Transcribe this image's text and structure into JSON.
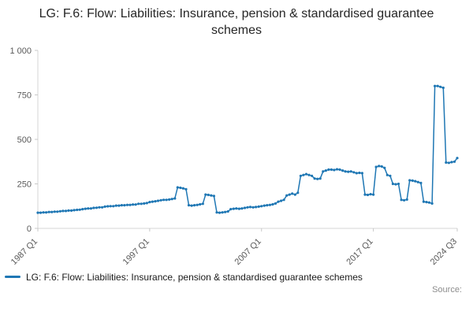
{
  "chart": {
    "title": "LG: F.6: Flow: Liabilities: Insurance, pension & standardised guarantee schemes",
    "legend_label": "LG: F.6: Flow: Liabilities: Insurance, pension & standardised guarantee schemes",
    "source_label": "Source:"
  },
  "chart_data": {
    "type": "line",
    "title": "LG: F.6: Flow: Liabilities: Insurance, pension & standardised guarantee schemes",
    "xlabel": "",
    "ylabel": "",
    "ylim": [
      0,
      1000
    ],
    "grid": false,
    "legend_position": "bottom-left",
    "line_color": "#1f77b4",
    "marker": "circle",
    "yticks": [
      {
        "value": 0,
        "label": "0"
      },
      {
        "value": 250,
        "label": "250"
      },
      {
        "value": 500,
        "label": "500"
      },
      {
        "value": 750,
        "label": "750"
      },
      {
        "value": 1000,
        "label": "1 000"
      }
    ],
    "xticks": [
      {
        "index": 0,
        "label": "1987 Q1"
      },
      {
        "index": 40,
        "label": "1997 Q1"
      },
      {
        "index": 80,
        "label": "2007 Q1"
      },
      {
        "index": 120,
        "label": "2017 Q1"
      },
      {
        "index": 150,
        "label": "2024 Q3"
      }
    ],
    "x_start": "1987 Q1",
    "x_end": "2024 Q3",
    "x_frequency": "quarterly",
    "series": [
      {
        "name": "LG: F.6: Flow: Liabilities: Insurance, pension & standardised guarantee schemes",
        "values": [
          88,
          88,
          90,
          90,
          92,
          92,
          94,
          94,
          96,
          98,
          98,
          100,
          100,
          102,
          104,
          105,
          108,
          110,
          112,
          112,
          115,
          116,
          118,
          118,
          122,
          124,
          125,
          125,
          128,
          128,
          130,
          130,
          132,
          132,
          134,
          134,
          138,
          138,
          140,
          142,
          148,
          150,
          152,
          155,
          158,
          160,
          160,
          162,
          165,
          168,
          230,
          228,
          225,
          220,
          130,
          128,
          130,
          132,
          135,
          138,
          190,
          188,
          185,
          182,
          90,
          88,
          90,
          92,
          95,
          108,
          110,
          112,
          110,
          112,
          115,
          118,
          120,
          118,
          120,
          122,
          125,
          128,
          130,
          132,
          135,
          140,
          150,
          155,
          160,
          185,
          190,
          195,
          190,
          200,
          295,
          300,
          305,
          300,
          295,
          280,
          278,
          280,
          320,
          325,
          330,
          330,
          328,
          332,
          330,
          325,
          320,
          318,
          320,
          315,
          310,
          312,
          310,
          190,
          188,
          192,
          190,
          345,
          350,
          348,
          340,
          300,
          295,
          250,
          248,
          250,
          160,
          158,
          162,
          270,
          268,
          265,
          260,
          255,
          150,
          148,
          145,
          140,
          800,
          800,
          795,
          790,
          370,
          368,
          372,
          375,
          395
        ]
      }
    ]
  }
}
